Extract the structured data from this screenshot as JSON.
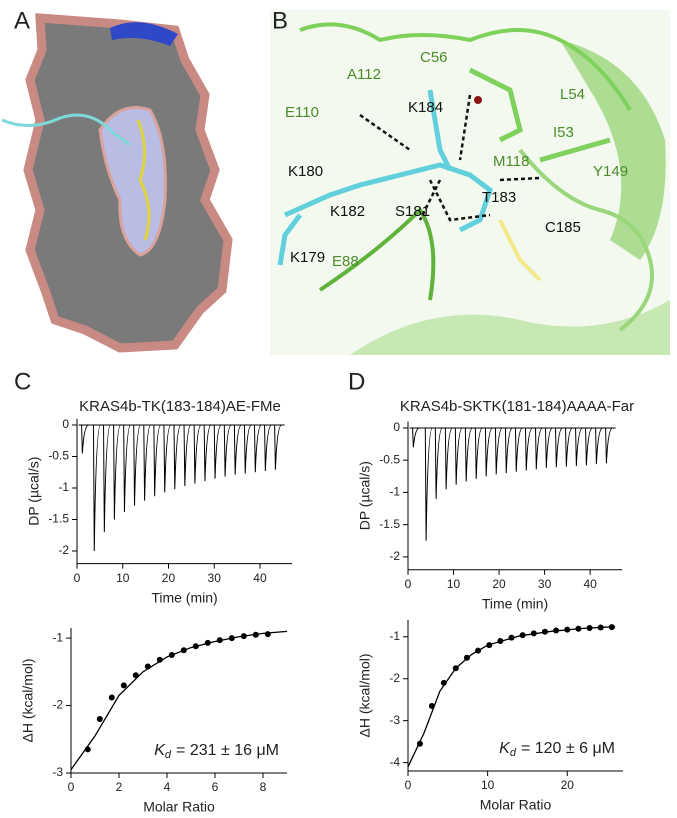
{
  "panel_labels": [
    "A",
    "B",
    "C",
    "D"
  ],
  "residue_labels": [
    {
      "text": "A112",
      "color": "#4a8c2a"
    },
    {
      "text": "C56",
      "color": "#4a8c2a"
    },
    {
      "text": "K184",
      "color": "#111111"
    },
    {
      "text": "L54",
      "color": "#4a8c2a"
    },
    {
      "text": "I53",
      "color": "#4a8c2a"
    },
    {
      "text": "E110",
      "color": "#4a8c2a"
    },
    {
      "text": "K180",
      "color": "#111111"
    },
    {
      "text": "M118",
      "color": "#4a8c2a"
    },
    {
      "text": "Y149",
      "color": "#4a8c2a"
    },
    {
      "text": "T183",
      "color": "#111111"
    },
    {
      "text": "K182",
      "color": "#111111"
    },
    {
      "text": "S181",
      "color": "#111111"
    },
    {
      "text": "C185",
      "color": "#111111"
    },
    {
      "text": "K179",
      "color": "#111111"
    },
    {
      "text": "E88",
      "color": "#4a8c2a"
    }
  ],
  "chart_data": [
    {
      "type": "injections",
      "title": "KRAS4b-TK(183-184)AE-FMe",
      "x_label": "Time (min)",
      "y_label": "DP (µcal/s)",
      "x": [
        1,
        3.6,
        5.8,
        8.0,
        10.2,
        12.4,
        14.6,
        16.8,
        19.0,
        21.2,
        23.4,
        25.6,
        27.8,
        30.0,
        32.2,
        34.4,
        36.6,
        38.8,
        41.0,
        43.2
      ],
      "values": [
        -0.45,
        -2.0,
        -1.7,
        -1.5,
        -1.38,
        -1.28,
        -1.2,
        -1.13,
        -1.07,
        -1.02,
        -0.97,
        -0.93,
        -0.89,
        -0.85,
        -0.82,
        -0.79,
        -0.77,
        -0.75,
        -0.73,
        -0.71
      ],
      "color": "#000000",
      "xlim": [
        0,
        47
      ],
      "xticks": [
        0,
        10,
        20,
        30,
        40
      ],
      "ylim": [
        -2.2,
        0.1
      ],
      "yticks": [
        0,
        -0.5,
        -1,
        -1.5,
        -2
      ]
    },
    {
      "type": "isotherm",
      "x_label": "Molar Ratio",
      "y_label": "ΔH (kcal/mol)",
      "x": [
        0.7,
        1.2,
        1.7,
        2.2,
        2.7,
        3.2,
        3.7,
        4.2,
        4.7,
        5.2,
        5.7,
        6.2,
        6.7,
        7.2,
        7.7,
        8.2
      ],
      "values": [
        -2.65,
        -2.2,
        -1.88,
        -1.7,
        -1.55,
        -1.42,
        -1.32,
        -1.25,
        -1.18,
        -1.12,
        -1.07,
        -1.03,
        -1.0,
        -0.97,
        -0.95,
        -0.94
      ],
      "fit_x": [
        0,
        1,
        2,
        3,
        4,
        5,
        6,
        7,
        8,
        9
      ],
      "fit_values": [
        -2.95,
        -2.45,
        -1.85,
        -1.5,
        -1.28,
        -1.14,
        -1.05,
        -0.98,
        -0.93,
        -0.9
      ],
      "color": "#000000",
      "xlim": [
        0,
        9
      ],
      "xticks": [
        0,
        2,
        4,
        6,
        8
      ],
      "ylim": [
        -3,
        -0.85
      ],
      "yticks": [
        -1,
        -2,
        -3
      ],
      "annotation": {
        "symbol": "K",
        "subscript": "d",
        "text": "= 231 ± 16 μM"
      }
    },
    {
      "type": "injections",
      "title": "KRAS4b-SKTK(181-184)AAAA-Far",
      "x_label": "Time (min)",
      "y_label": "DP (µcal/s)",
      "x": [
        1,
        3.8,
        6.0,
        8.2,
        10.4,
        12.6,
        14.8,
        17.0,
        19.2,
        21.4,
        23.6,
        25.8,
        28.0,
        30.2,
        32.4,
        34.6,
        36.8,
        39.0,
        41.2,
        43.4
      ],
      "values": [
        -0.3,
        -1.75,
        -1.1,
        -0.95,
        -0.88,
        -0.83,
        -0.79,
        -0.75,
        -0.72,
        -0.7,
        -0.68,
        -0.66,
        -0.64,
        -0.62,
        -0.61,
        -0.6,
        -0.59,
        -0.58,
        -0.56,
        -0.55
      ],
      "color": "#000000",
      "xlim": [
        0,
        47
      ],
      "xticks": [
        0,
        10,
        20,
        30,
        40
      ],
      "ylim": [
        -2.2,
        0.1
      ],
      "yticks": [
        0,
        -0.5,
        -1,
        -1.5,
        -2
      ]
    },
    {
      "type": "isotherm",
      "x_label": "Molar Ratio",
      "y_label": "ΔH (kcal/mol)",
      "x": [
        1.5,
        3,
        4.5,
        6,
        7.4,
        8.8,
        10.2,
        11.6,
        13,
        14.4,
        15.8,
        17.2,
        18.6,
        20,
        21.4,
        22.8,
        24.2,
        25.6
      ],
      "values": [
        -3.55,
        -2.65,
        -2.1,
        -1.75,
        -1.5,
        -1.33,
        -1.2,
        -1.1,
        -1.02,
        -0.96,
        -0.92,
        -0.88,
        -0.85,
        -0.83,
        -0.81,
        -0.79,
        -0.78,
        -0.77
      ],
      "fit_x": [
        0,
        2,
        4,
        6,
        8,
        10,
        14,
        18,
        22,
        26
      ],
      "fit_values": [
        -4.1,
        -3.3,
        -2.3,
        -1.75,
        -1.42,
        -1.2,
        -0.98,
        -0.87,
        -0.8,
        -0.76
      ],
      "color": "#000000",
      "xlim": [
        0,
        27
      ],
      "xticks": [
        0,
        10,
        20
      ],
      "ylim": [
        -4.2,
        -0.6
      ],
      "yticks": [
        -4,
        -3,
        -2,
        -1
      ],
      "annotation": {
        "symbol": "K",
        "subscript": "d",
        "text": "= 120 ± 6 μM"
      }
    }
  ]
}
